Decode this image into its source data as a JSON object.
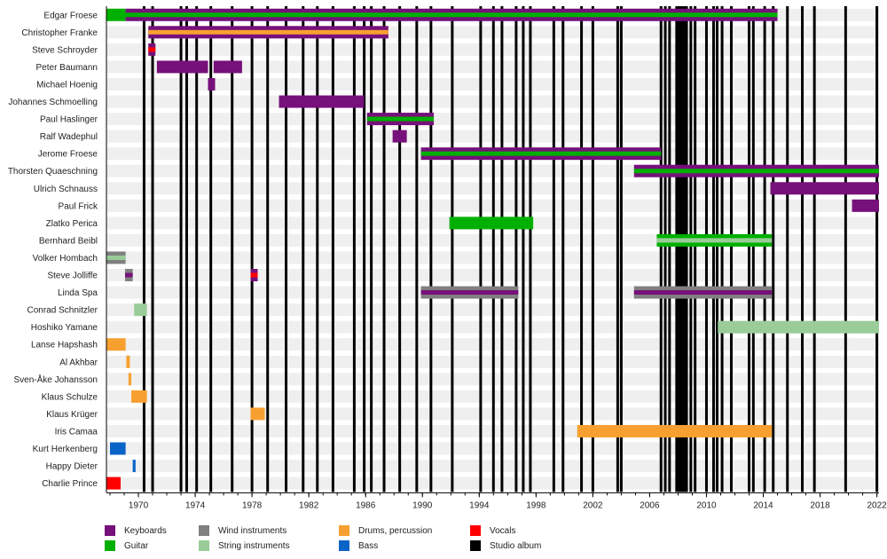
{
  "chart_data": {
    "type": "timeline",
    "title": "",
    "x_axis": {
      "min": 1967.75,
      "max": 2022.15,
      "ticks": [
        1970,
        1974,
        1978,
        1982,
        1986,
        1990,
        1994,
        1998,
        2002,
        2006,
        2010,
        2014,
        2018,
        2022
      ],
      "minor_tick_step": 1
    },
    "roles": {
      "keyboards": {
        "label": "Keyboards",
        "color": "#76107a"
      },
      "guitar": {
        "label": "Guitar",
        "color": "#00b000"
      },
      "wind": {
        "label": "Wind instruments",
        "color": "#808080"
      },
      "strings": {
        "label": "String instruments",
        "color": "#99cc99"
      },
      "drums": {
        "label": "Drums, percussion",
        "color": "#f7a030"
      },
      "bass": {
        "label": "Bass",
        "color": "#0a64c8"
      },
      "vocals": {
        "label": "Vocals",
        "color": "#ff0000"
      },
      "album": {
        "label": "Studio album",
        "color": "#000000"
      }
    },
    "legend": [
      [
        "keyboards",
        "guitar"
      ],
      [
        "wind",
        "strings"
      ],
      [
        "drums",
        "bass"
      ],
      [
        "vocals",
        "album"
      ]
    ],
    "members": [
      {
        "name": "Edgar Froese",
        "spans": [
          {
            "start": 1967.75,
            "end": 1969.1,
            "main": "guitar"
          },
          {
            "start": 1969.1,
            "end": 2015.0,
            "main": "keyboards",
            "stripe": "guitar"
          }
        ]
      },
      {
        "name": "Christopher Franke",
        "spans": [
          {
            "start": 1970.7,
            "end": 1987.6,
            "main": "keyboards",
            "stripe": "drums"
          }
        ]
      },
      {
        "name": "Steve Schroyder",
        "spans": [
          {
            "start": 1970.7,
            "end": 1971.2,
            "main": "keyboards",
            "stripe": "vocals"
          }
        ]
      },
      {
        "name": "Peter Baumann",
        "spans": [
          {
            "start": 1971.3,
            "end": 1974.9,
            "main": "keyboards"
          },
          {
            "start": 1975.3,
            "end": 1977.3,
            "main": "keyboards"
          }
        ]
      },
      {
        "name": "Michael Hoenig",
        "spans": [
          {
            "start": 1974.9,
            "end": 1975.4,
            "main": "keyboards"
          }
        ]
      },
      {
        "name": "Johannes Schmoelling",
        "spans": [
          {
            "start": 1979.9,
            "end": 1985.9,
            "main": "keyboards"
          }
        ]
      },
      {
        "name": "Paul Haslinger",
        "spans": [
          {
            "start": 1986.1,
            "end": 1990.8,
            "main": "keyboards",
            "stripe": "guitar"
          }
        ]
      },
      {
        "name": "Ralf Wadephul",
        "spans": [
          {
            "start": 1987.9,
            "end": 1988.9,
            "main": "keyboards"
          }
        ]
      },
      {
        "name": "Jerome Froese",
        "spans": [
          {
            "start": 1989.9,
            "end": 2006.8,
            "main": "keyboards",
            "stripe": "guitar"
          }
        ]
      },
      {
        "name": "Thorsten Quaeschning",
        "spans": [
          {
            "start": 2004.9,
            "end": 2022.15,
            "main": "keyboards",
            "stripe": "guitar"
          }
        ]
      },
      {
        "name": "Ulrich Schnauss",
        "spans": [
          {
            "start": 2014.5,
            "end": 2022.15,
            "main": "keyboards"
          }
        ]
      },
      {
        "name": "Paul Frick",
        "spans": [
          {
            "start": 2020.25,
            "end": 2022.15,
            "main": "keyboards"
          }
        ]
      },
      {
        "name": "Zlatko Perica",
        "spans": [
          {
            "start": 1991.9,
            "end": 1997.8,
            "main": "guitar"
          }
        ]
      },
      {
        "name": "Bernhard Beibl",
        "spans": [
          {
            "start": 2006.5,
            "end": 2014.6,
            "main": "guitar",
            "stripe": "strings"
          }
        ]
      },
      {
        "name": "Volker Hombach",
        "spans": [
          {
            "start": 1967.75,
            "end": 1969.1,
            "main": "wind",
            "stripe": "strings"
          }
        ]
      },
      {
        "name": "Steve Jolliffe",
        "spans": [
          {
            "start": 1969.06,
            "end": 1969.6,
            "main": "wind",
            "stripe": "keyboards"
          },
          {
            "start": 1977.9,
            "end": 1978.4,
            "main": "keyboards",
            "stripe": "vocals"
          }
        ]
      },
      {
        "name": "Linda Spa",
        "spans": [
          {
            "start": 1989.9,
            "end": 1996.75,
            "main": "wind",
            "stripe": "keyboards"
          },
          {
            "start": 2004.9,
            "end": 2014.6,
            "main": "wind",
            "stripe": "keyboards"
          }
        ]
      },
      {
        "name": "Conrad Schnitzler",
        "spans": [
          {
            "start": 1969.7,
            "end": 1970.6,
            "main": "strings"
          }
        ]
      },
      {
        "name": "Hoshiko Yamane",
        "spans": [
          {
            "start": 2010.8,
            "end": 2022.15,
            "main": "strings"
          }
        ]
      },
      {
        "name": "Lanse Hapshash",
        "spans": [
          {
            "start": 1967.75,
            "end": 1969.1,
            "main": "drums"
          }
        ]
      },
      {
        "name": "Al Akhbar",
        "spans": [
          {
            "start": 1969.15,
            "end": 1969.4,
            "main": "drums"
          }
        ]
      },
      {
        "name": "Sven-Åke Johansson",
        "spans": [
          {
            "start": 1969.3,
            "end": 1969.5,
            "main": "drums"
          }
        ]
      },
      {
        "name": "Klaus Schulze",
        "spans": [
          {
            "start": 1969.5,
            "end": 1970.6,
            "main": "drums"
          }
        ]
      },
      {
        "name": "Klaus Krüger",
        "spans": [
          {
            "start": 1977.9,
            "end": 1978.9,
            "main": "drums"
          }
        ]
      },
      {
        "name": "Iris Camaa",
        "spans": [
          {
            "start": 2000.9,
            "end": 2014.6,
            "main": "drums"
          }
        ]
      },
      {
        "name": "Kurt Herkenberg",
        "spans": [
          {
            "start": 1968.0,
            "end": 1969.1,
            "main": "bass"
          }
        ]
      },
      {
        "name": "Happy Dieter",
        "spans": [
          {
            "start": 1969.6,
            "end": 1969.8,
            "main": "bass"
          }
        ]
      },
      {
        "name": "Charlie Prince",
        "spans": [
          {
            "start": 1967.75,
            "end": 1968.75,
            "main": "vocals"
          }
        ]
      }
    ],
    "albums": [
      1970.4,
      1971.0,
      1973.0,
      1973.4,
      1974.1,
      1975.1,
      1976.6,
      1978.0,
      1979.1,
      1980.4,
      1981.6,
      1982.6,
      1983.7,
      1985.2,
      1985.9,
      1986.4,
      1987.3,
      1988.4,
      1989.6,
      1990.6,
      1992.1,
      1994.1,
      1995.0,
      1995.6,
      1996.6,
      1997.1,
      1997.6,
      1999.25,
      1999.9,
      2001.2,
      2002.0,
      2003.75,
      2004.0,
      2006.8,
      2007.1,
      2007.4,
      2007.9,
      2008.05,
      2008.2,
      2008.35,
      2008.5,
      2008.6,
      2008.9,
      2009.2,
      2010.0,
      2010.5,
      2010.75,
      2011.1,
      2011.75,
      2013.0,
      2013.3,
      2014.1,
      2014.7,
      2015.7,
      2016.75,
      2017.6,
      2019.8,
      2022.0
    ]
  }
}
